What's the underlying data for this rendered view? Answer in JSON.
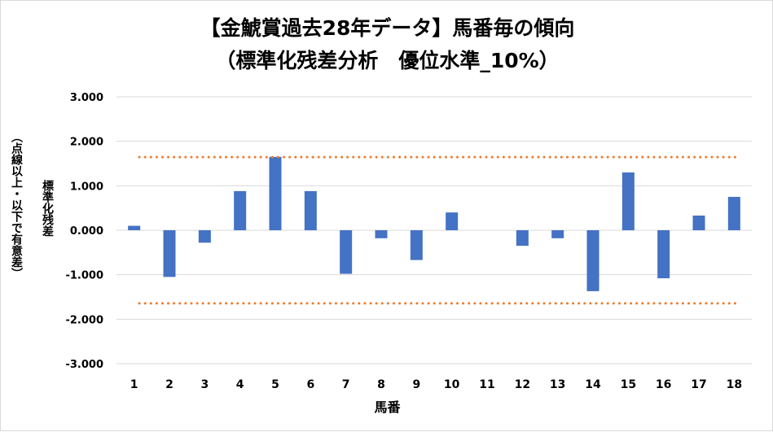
{
  "chart_data": {
    "type": "bar",
    "title_line1": "【金鯱賞過去28年データ】馬番毎の傾向",
    "title_line2": "（標準化残差分析　優位水準_10%）",
    "ylabel_line1": "標準化残差",
    "ylabel_line2": "（点線以上・以下で有意差）",
    "xlabel": "馬番",
    "categories": [
      "1",
      "2",
      "3",
      "4",
      "5",
      "6",
      "7",
      "8",
      "9",
      "10",
      "11",
      "12",
      "13",
      "14",
      "15",
      "16",
      "17",
      "18"
    ],
    "values": [
      0.1,
      -1.05,
      -0.28,
      0.88,
      1.65,
      0.88,
      -0.98,
      -0.18,
      -0.67,
      0.4,
      0.0,
      -0.35,
      -0.18,
      -1.37,
      1.3,
      -1.08,
      0.33,
      0.75
    ],
    "ylim": [
      -3,
      3
    ],
    "yticks": [
      "3.000",
      "2.000",
      "1.000",
      "0.000",
      "-1.000",
      "-2.000",
      "-3.000"
    ],
    "ytick_values": [
      3,
      2,
      1,
      0,
      -1,
      -2,
      -3
    ],
    "threshold_values": [
      1.645,
      -1.645
    ],
    "bar_color": "#4472c4",
    "threshold_color": "#ed7d31",
    "grid": true,
    "legend": "none"
  }
}
